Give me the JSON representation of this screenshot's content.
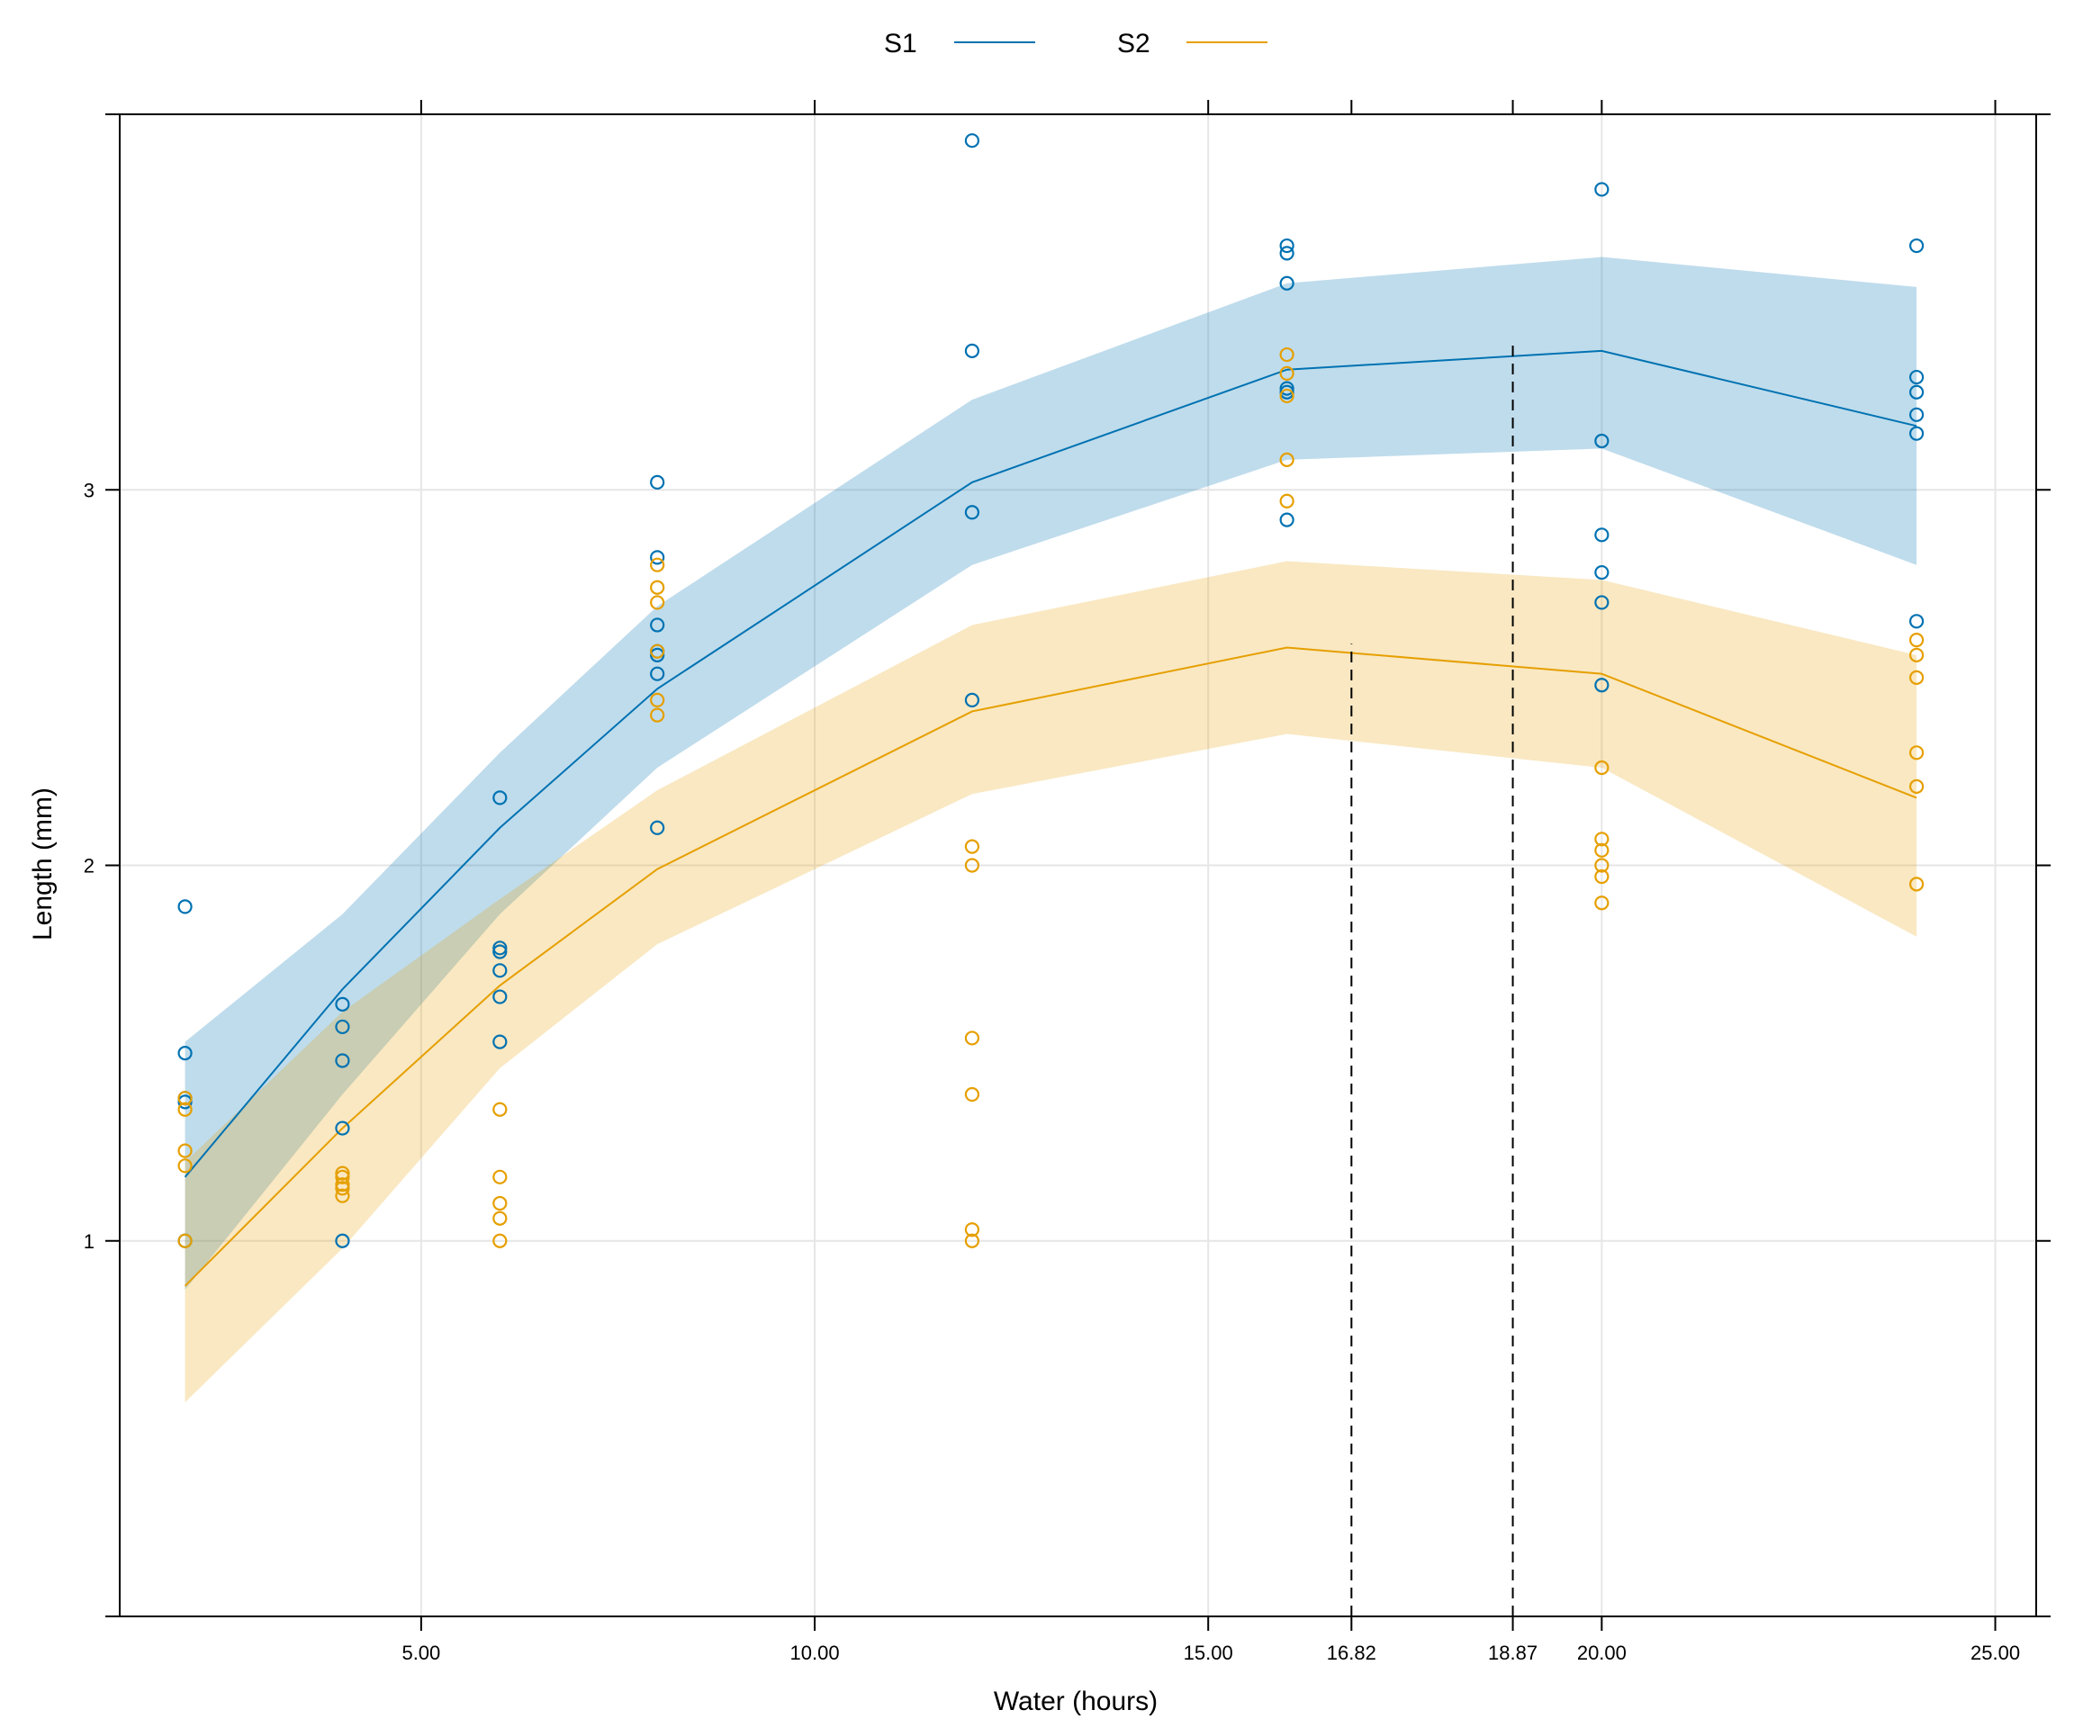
{
  "chart_data": {
    "type": "line",
    "title": "",
    "xlabel": "Water (hours)",
    "ylabel": "Length (mm)",
    "xlim": [
      1.17,
      25.52
    ],
    "ylim": [
      0.0,
      4.0
    ],
    "grid": true,
    "legend_position": "top",
    "x_ticks": [
      5,
      10,
      15,
      16.82,
      18.87,
      20,
      25
    ],
    "x_tick_labels": [
      "5.00",
      "10.00",
      "15.00",
      "16.82",
      "18.87",
      "20.00",
      "25.00"
    ],
    "x_grid": [
      5,
      10,
      15,
      20,
      25
    ],
    "y_ticks": [
      1,
      2,
      3
    ],
    "y_tick_labels": [
      "1",
      "2",
      "3"
    ],
    "x": [
      2,
      4,
      6,
      8,
      12,
      16,
      20,
      24
    ],
    "series": [
      {
        "name": "S1",
        "color": "#0072b2",
        "band_color": "#c1dbec",
        "fit": [
          1.17,
          1.67,
          2.1,
          2.47,
          3.02,
          3.32,
          3.37,
          3.17
        ],
        "lower": [
          0.87,
          1.39,
          1.87,
          2.26,
          2.8,
          3.08,
          3.11,
          2.8
        ],
        "upper": [
          1.53,
          1.87,
          2.3,
          2.69,
          3.24,
          3.55,
          3.62,
          3.54
        ],
        "points": [
          [
            2,
            1.89
          ],
          [
            2,
            1.5
          ],
          [
            2,
            1.38
          ],
          [
            2,
            1.37
          ],
          [
            2,
            1.0
          ],
          [
            4,
            1.63
          ],
          [
            4,
            1.57
          ],
          [
            4,
            1.48
          ],
          [
            4,
            1.3
          ],
          [
            4,
            1.0
          ],
          [
            6,
            2.18
          ],
          [
            6,
            1.78
          ],
          [
            6,
            1.77
          ],
          [
            6,
            1.72
          ],
          [
            6,
            1.65
          ],
          [
            6,
            1.53
          ],
          [
            8,
            3.02
          ],
          [
            8,
            2.82
          ],
          [
            8,
            2.64
          ],
          [
            8,
            2.57
          ],
          [
            8,
            2.56
          ],
          [
            8,
            2.51
          ],
          [
            8,
            2.1
          ],
          [
            12,
            3.93
          ],
          [
            12,
            3.37
          ],
          [
            12,
            2.94
          ],
          [
            12,
            2.44
          ],
          [
            16,
            3.65
          ],
          [
            16,
            3.63
          ],
          [
            16,
            3.55
          ],
          [
            16,
            3.27
          ],
          [
            16,
            3.26
          ],
          [
            16,
            2.92
          ],
          [
            20,
            3.8
          ],
          [
            20,
            3.13
          ],
          [
            20,
            2.88
          ],
          [
            20,
            2.78
          ],
          [
            20,
            2.7
          ],
          [
            20,
            2.48
          ],
          [
            24,
            3.65
          ],
          [
            24,
            3.3
          ],
          [
            24,
            3.26
          ],
          [
            24,
            3.2
          ],
          [
            24,
            3.15
          ],
          [
            24,
            2.65
          ]
        ]
      },
      {
        "name": "S2",
        "color": "#e69f00",
        "band_color": "#f8e6c0",
        "fit": [
          0.88,
          1.3,
          1.68,
          1.99,
          2.41,
          2.58,
          2.51,
          2.18
        ],
        "lower": [
          0.57,
          0.98,
          1.46,
          1.79,
          2.19,
          2.35,
          2.26,
          1.81
        ],
        "upper": [
          1.21,
          1.61,
          1.91,
          2.2,
          2.64,
          2.81,
          2.76,
          2.56
        ],
        "points": [
          [
            2,
            1.38
          ],
          [
            2,
            1.35
          ],
          [
            2,
            1.24
          ],
          [
            2,
            1.2
          ],
          [
            2,
            1.0
          ],
          [
            4,
            1.18
          ],
          [
            4,
            1.17
          ],
          [
            4,
            1.15
          ],
          [
            4,
            1.14
          ],
          [
            4,
            1.12
          ],
          [
            6,
            1.35
          ],
          [
            6,
            1.17
          ],
          [
            6,
            1.1
          ],
          [
            6,
            1.06
          ],
          [
            6,
            1.0
          ],
          [
            8,
            2.8
          ],
          [
            8,
            2.74
          ],
          [
            8,
            2.7
          ],
          [
            8,
            2.57
          ],
          [
            8,
            2.44
          ],
          [
            8,
            2.4
          ],
          [
            12,
            2.05
          ],
          [
            12,
            2.0
          ],
          [
            12,
            1.54
          ],
          [
            12,
            1.39
          ],
          [
            12,
            1.03
          ],
          [
            12,
            1.0
          ],
          [
            16,
            3.36
          ],
          [
            16,
            3.31
          ],
          [
            16,
            3.25
          ],
          [
            16,
            3.08
          ],
          [
            16,
            2.97
          ],
          [
            20,
            2.26
          ],
          [
            20,
            2.07
          ],
          [
            20,
            2.04
          ],
          [
            20,
            2.0
          ],
          [
            20,
            1.97
          ],
          [
            20,
            1.9
          ],
          [
            24,
            2.6
          ],
          [
            24,
            2.56
          ],
          [
            24,
            2.5
          ],
          [
            24,
            2.3
          ],
          [
            24,
            2.21
          ],
          [
            24,
            1.95
          ]
        ]
      }
    ],
    "reference_lines": [
      {
        "x": 16.82,
        "y_top": 2.59,
        "style": "dashed",
        "color": "#000000"
      },
      {
        "x": 18.87,
        "y_top": 3.39,
        "style": "dashed",
        "color": "#000000"
      }
    ],
    "legend": [
      {
        "label": "S1",
        "color": "#0072b2"
      },
      {
        "label": "S2",
        "color": "#e69f00"
      }
    ]
  }
}
